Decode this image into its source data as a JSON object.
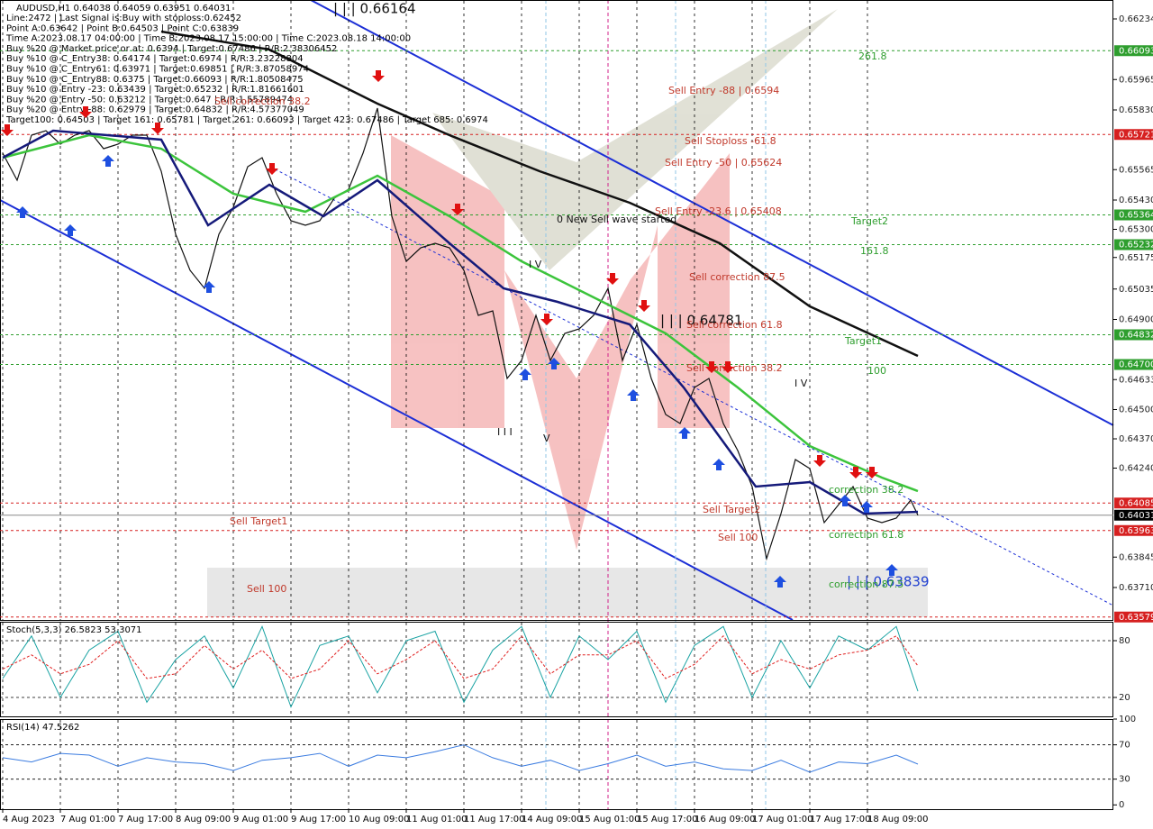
{
  "chart_data": [
    {
      "type": "line",
      "title": "AUDUSD,H1  0.64038 0.64059 0.63951 0.64031",
      "info": [
        "Line:2472 | Last Signal is:Buy with stoploss:0.62452",
        "Point A:0.63642 | Point B:0.64503 | Point C:0.63839",
        "Time A:2023.08.17 04:00:00 | Time B:2023.08.17 15:00:00 | Time C:2023.08.18 14:00:00",
        "Buy %20 @ Market price or at: 0.6394 | Target:0.67486 | R/R:2.38306452",
        "Buy %10 @ C_Entry38: 0.64174 | Target:0.6974 | R/R:3.23228804",
        "Buy %10 @ C_Entry61: 0.63971 | Target:0.69851 | R/R:3.87058974",
        "Buy %10 @ C_Entry88: 0.6375 | Target:0.66093 | R/R:1.80508475",
        "Buy %10 @ Entry -23: 0.63439 | Target:0.65232 | R/R:1.81661601",
        "Buy %20 @ Entry -50: 0.63212 | Target:0.647 | R/R:1.55789474",
        "Buy %20 @ Entry -88: 0.62979 | Target:0.64832 | R/R:4.57377049",
        "Target100: 0.64503 | Target 161: 0.65781 | Target 261: 0.66093 | Target 423: 0.67486 | Target 685: 0.6974"
      ],
      "xlim": [
        -0.75,
        308.25
      ],
      "xticks": [
        {
          "value": 0,
          "label": "4 Aug 2023"
        },
        {
          "value": 16,
          "label": "7 Aug 01:00"
        },
        {
          "value": 32,
          "label": "7 Aug 17:00"
        },
        {
          "value": 48,
          "label": "8 Aug 09:00"
        },
        {
          "value": 64,
          "label": "9 Aug 01:00"
        },
        {
          "value": 80,
          "label": "9 Aug 17:00"
        },
        {
          "value": 96,
          "label": "10 Aug 09:00"
        },
        {
          "value": 112,
          "label": "11 Aug 01:00"
        },
        {
          "value": 128,
          "label": "11 Aug 17:00"
        },
        {
          "value": 144,
          "label": "14 Aug 09:00"
        },
        {
          "value": 160,
          "label": "15 Aug 01:00"
        },
        {
          "value": 176,
          "label": "15 Aug 17:00"
        },
        {
          "value": 192,
          "label": "16 Aug 09:00"
        },
        {
          "value": 208,
          "label": "17 Aug 01:00"
        },
        {
          "value": 224,
          "label": "17 Aug 17:00"
        },
        {
          "value": 240,
          "label": "18 Aug 09:00"
        }
      ],
      "ylim": [
        0.63566,
        0.66318
      ],
      "yticks": [
        0.66234,
        {
          "value": 0.6583,
          "label": "0.65830"
        },
        0.65965,
        0.65565,
        {
          "value": 0.6543,
          "label": "0.65430"
        },
        {
          "value": 0.653,
          "label": "0.65300"
        },
        0.65175,
        0.65035,
        {
          "value": 0.649,
          "label": "0.64900"
        },
        0.64633,
        {
          "value": 0.645,
          "label": "0.64500"
        },
        {
          "value": 0.6437,
          "label": "0.64370"
        },
        {
          "value": 0.6424,
          "label": "0.64240"
        },
        0.63845,
        {
          "value": 0.6371,
          "label": "0.63710"
        }
      ],
      "levels": [
        {
          "value": 0.66093,
          "color": "#2e9e2e"
        },
        {
          "value": 0.65721,
          "color": "#d62020"
        },
        {
          "value": 0.65364,
          "color": "#2e9e2e"
        },
        {
          "value": 0.65232,
          "color": "#2e9e2e"
        },
        {
          "value": 0.64832,
          "color": "#2e9e2e"
        },
        {
          "value": 0.647,
          "label": "0.64700",
          "color": "#2e9e2e"
        },
        {
          "value": 0.64085,
          "color": "#d62020"
        },
        {
          "value": 0.64031,
          "color": "#000000"
        },
        {
          "value": 0.63963,
          "color": "#d62020"
        },
        {
          "value": 0.63579,
          "color": "#d62020"
        }
      ],
      "series": [
        {
          "name": "Close",
          "color": "#111111",
          "x": [
            0,
            4,
            8,
            12,
            16,
            20,
            24,
            28,
            32,
            36,
            40,
            44,
            48,
            52,
            56,
            60,
            64,
            68,
            72,
            76,
            80,
            84,
            88,
            92,
            96,
            100,
            104,
            108,
            112,
            116,
            120,
            124,
            128,
            132,
            136,
            140,
            144,
            148,
            152,
            156,
            160,
            164,
            168,
            172,
            176,
            180,
            184,
            188,
            192,
            196,
            200,
            204,
            208,
            212,
            216,
            220,
            224,
            228,
            232,
            236,
            240,
            244,
            248,
            252,
            254
          ],
          "values": [
            0.65638,
            0.65518,
            0.65718,
            0.65738,
            0.65678,
            0.65718,
            0.65738,
            0.65658,
            0.65678,
            0.65718,
            0.65718,
            0.65558,
            0.65278,
            0.65118,
            0.65038,
            0.65278,
            0.65398,
            0.65578,
            0.65618,
            0.65458,
            0.65338,
            0.65318,
            0.65338,
            0.65438,
            0.65478,
            0.65638,
            0.65838,
            0.65358,
            0.65158,
            0.65218,
            0.65238,
            0.65218,
            0.65118,
            0.64918,
            0.64938,
            0.64638,
            0.64718,
            0.64918,
            0.64718,
            0.64838,
            0.64858,
            0.64918,
            0.65038,
            0.64718,
            0.64878,
            0.64638,
            0.64478,
            0.64438,
            0.64598,
            0.64638,
            0.64438,
            0.64318,
            0.64158,
            0.63838,
            0.64038,
            0.64278,
            0.64238,
            0.63998,
            0.64078,
            0.64158,
            0.64018,
            0.63998,
            0.64018,
            0.64098,
            0.64031
          ]
        },
        {
          "name": "MA green",
          "color": "#3cc43c",
          "x": [
            0,
            24,
            44,
            64,
            84,
            104,
            124,
            144,
            164,
            184,
            204,
            224,
            244,
            254
          ],
          "values": [
            0.65618,
            0.65718,
            0.65658,
            0.65458,
            0.65378,
            0.65538,
            0.65358,
            0.65158,
            0.64998,
            0.64838,
            0.64598,
            0.64338,
            0.64198,
            0.64138
          ]
        },
        {
          "name": "MA navy",
          "color": "#151a7a",
          "x": [
            0,
            14,
            29,
            44,
            57,
            74,
            89,
            104,
            124,
            139,
            154,
            174,
            189,
            209,
            224,
            239,
            254
          ],
          "values": [
            0.65618,
            0.65738,
            0.65718,
            0.65698,
            0.65318,
            0.65498,
            0.65358,
            0.65518,
            0.65238,
            0.65038,
            0.64978,
            0.64878,
            0.64598,
            0.64158,
            0.64178,
            0.64038,
            0.64046
          ]
        },
        {
          "name": "MA black",
          "color": "#111111",
          "x": [
            44,
            74,
            104,
            124,
            149,
            174,
            199,
            224,
            254
          ],
          "values": [
            0.66178,
            0.66098,
            0.65858,
            0.65718,
            0.65558,
            0.65418,
            0.65238,
            0.64958,
            0.64738
          ]
        }
      ],
      "annotations": [
        {
          "text": "| | | 0.66164",
          "color": "#111111"
        },
        {
          "text": "Sell Entry -88 | 0.6594",
          "color": "#c0392b"
        },
        {
          "text": "Sell Stoploss -61.8",
          "color": "#c0392b"
        },
        {
          "text": "Sell Entry -50 | 0.65624",
          "color": "#c0392b"
        },
        {
          "text": "Sell Entry -23.6 | 0.65408",
          "color": "#c0392b"
        },
        {
          "text": "0 New Sell wave started",
          "color": "#111111"
        },
        {
          "text": "Sell correction 87.5",
          "color": "#c0392b"
        },
        {
          "text": "| | | 0.64781",
          "color": "#111111"
        },
        {
          "text": "Sell correction 61.8",
          "color": "#c0392b"
        },
        {
          "text": "Sell correction 38.2",
          "color": "#c0392b"
        },
        {
          "text": "Sell correction 38.2",
          "color": "#c0392b"
        },
        {
          "text": "261.8",
          "color": "#2e9e2e"
        },
        {
          "text": "Target2",
          "color": "#2e9e2e"
        },
        {
          "text": "161.8",
          "color": "#2e9e2e"
        },
        {
          "text": "Target1",
          "color": "#2e9e2e"
        },
        {
          "text": "100",
          "color": "#2e9e2e"
        },
        {
          "text": "Sell Target1",
          "color": "#c0392b"
        },
        {
          "text": "Sell Target2",
          "color": "#c0392b"
        },
        {
          "text": "Sell 100",
          "color": "#c0392b"
        },
        {
          "text": "Sell 100",
          "color": "#c0392b"
        },
        {
          "text": "| | | 0.63839",
          "color": "#1f3fd0"
        },
        {
          "text": "I V",
          "color": "#111111"
        },
        {
          "text": "I V",
          "color": "#111111"
        },
        {
          "text": "I I I",
          "color": "#111111"
        },
        {
          "text": "V",
          "color": "#111111"
        },
        {
          "text": "correction 38.2",
          "color": "#2e9e2e"
        },
        {
          "text": "correction 61.8",
          "color": "#2e9e2e"
        },
        {
          "text": "correction 87.5",
          "color": "#2e9e2e"
        }
      ]
    },
    {
      "type": "line",
      "title": "Stoch(5,3,3) 26.5823 53.3071",
      "xlim": [
        -0.75,
        308.25
      ],
      "ylim": [
        0,
        100
      ],
      "yticks": [
        20,
        80
      ],
      "levels": [
        20,
        80
      ],
      "series": [
        {
          "name": "Main",
          "color": "#1aa3a3",
          "dash": false,
          "x": [
            0,
            8,
            16,
            24,
            32,
            40,
            48,
            56,
            64,
            72,
            80,
            88,
            96,
            104,
            112,
            120,
            128,
            136,
            144,
            152,
            160,
            168,
            176,
            184,
            192,
            200,
            208,
            216,
            224,
            232,
            240,
            248,
            254
          ],
          "values": [
            40,
            85,
            20,
            70,
            90,
            15,
            60,
            85,
            30,
            95,
            10,
            75,
            85,
            25,
            80,
            90,
            15,
            70,
            95,
            20,
            85,
            60,
            90,
            15,
            75,
            95,
            20,
            80,
            30,
            85,
            70,
            95,
            26.5823
          ]
        },
        {
          "name": "Signal",
          "color": "#e02020",
          "dash": true,
          "x": [
            0,
            8,
            16,
            24,
            32,
            40,
            48,
            56,
            64,
            72,
            80,
            88,
            96,
            104,
            112,
            120,
            128,
            136,
            144,
            152,
            160,
            168,
            176,
            184,
            192,
            200,
            208,
            216,
            224,
            232,
            240,
            248,
            254
          ],
          "values": [
            50,
            65,
            45,
            55,
            80,
            40,
            45,
            75,
            50,
            70,
            40,
            50,
            80,
            45,
            60,
            80,
            40,
            50,
            85,
            45,
            65,
            65,
            80,
            40,
            55,
            85,
            45,
            60,
            50,
            65,
            70,
            85,
            53.3071
          ]
        }
      ]
    },
    {
      "type": "line",
      "title": "RSI(14) 47.5262",
      "xlim": [
        -0.75,
        308.25
      ],
      "ylim": [
        -5,
        100
      ],
      "yticks": [
        0,
        30,
        70,
        100
      ],
      "levels": [
        30,
        70
      ],
      "series": [
        {
          "name": "RSI",
          "color": "#3a7be0",
          "dash": false,
          "x": [
            0,
            8,
            16,
            24,
            32,
            40,
            48,
            56,
            64,
            72,
            80,
            88,
            96,
            104,
            112,
            120,
            128,
            136,
            144,
            152,
            160,
            168,
            176,
            184,
            192,
            200,
            208,
            216,
            224,
            232,
            240,
            248,
            254
          ],
          "values": [
            55,
            50,
            60,
            58,
            45,
            55,
            50,
            48,
            40,
            52,
            55,
            60,
            45,
            58,
            55,
            62,
            70,
            55,
            45,
            52,
            40,
            48,
            58,
            45,
            50,
            42,
            40,
            52,
            38,
            50,
            48,
            58,
            47.5262
          ]
        }
      ]
    }
  ]
}
